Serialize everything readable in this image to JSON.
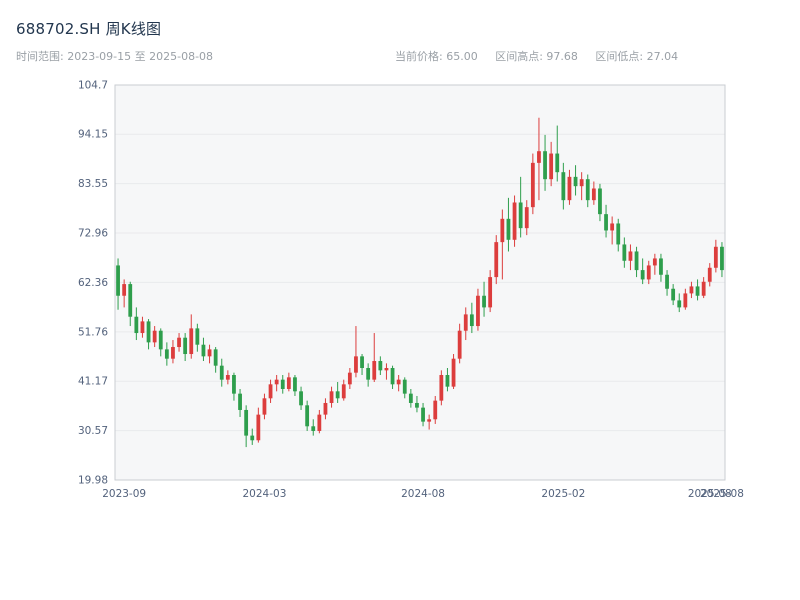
{
  "header": {
    "title": "688702.SH 周K线图",
    "time_range": "时间范围: 2023-09-15 至 2025-08-08",
    "stats": [
      "当前价格: 65.00",
      "区间高点: 97.68",
      "区间低点: 27.04"
    ]
  },
  "chart_data": {
    "type": "candlestick",
    "title": "688702.SH 周K线图",
    "xlabel": "",
    "ylabel": "",
    "ylim": [
      19.98,
      104.7
    ],
    "y_ticks": [
      "19.98",
      "30.57",
      "41.17",
      "51.76",
      "62.36",
      "72.96",
      "83.55",
      "94.15",
      "104.7"
    ],
    "x_ticks": [
      {
        "label": "2023-09",
        "pos": 1
      },
      {
        "label": "2024-03",
        "pos": 24
      },
      {
        "label": "2024-08",
        "pos": 50
      },
      {
        "label": "2025-02",
        "pos": 73
      },
      {
        "label": "2025-08",
        "pos": 97
      },
      {
        "label": "2025-08",
        "pos": 99
      }
    ],
    "legend": [],
    "grid": "horizontal",
    "colors": {
      "up": "#dc3d3d",
      "down": "#2e9e4c",
      "grid": "#e9eaec",
      "border": "#c9cdd2",
      "tick_text": "#53627c",
      "plot_bg": "#f6f7f8"
    },
    "candles": [
      [
        66.0,
        67.5,
        56.5,
        59.5
      ],
      [
        59.5,
        63.0,
        57.0,
        62.0
      ],
      [
        62.0,
        62.5,
        53.0,
        55.0
      ],
      [
        55.0,
        57.0,
        50.0,
        51.5
      ],
      [
        51.5,
        55.0,
        50.5,
        54.0
      ],
      [
        54.0,
        54.5,
        48.0,
        49.5
      ],
      [
        49.5,
        53.0,
        48.5,
        52.0
      ],
      [
        52.0,
        52.5,
        46.5,
        48.0
      ],
      [
        48.0,
        49.5,
        44.5,
        46.0
      ],
      [
        46.0,
        50.0,
        45.0,
        48.5
      ],
      [
        48.5,
        51.5,
        47.5,
        50.5
      ],
      [
        50.5,
        51.5,
        45.5,
        47.0
      ],
      [
        47.0,
        55.5,
        46.0,
        52.5
      ],
      [
        52.5,
        53.5,
        47.5,
        49.0
      ],
      [
        49.0,
        50.5,
        45.5,
        46.5
      ],
      [
        46.5,
        49.0,
        45.0,
        48.0
      ],
      [
        48.0,
        48.5,
        43.0,
        44.5
      ],
      [
        44.5,
        46.0,
        40.0,
        41.5
      ],
      [
        41.5,
        43.5,
        40.5,
        42.5
      ],
      [
        42.5,
        43.0,
        37.0,
        38.5
      ],
      [
        38.5,
        39.5,
        33.5,
        35.0
      ],
      [
        35.0,
        36.0,
        27.04,
        29.5
      ],
      [
        29.5,
        31.0,
        27.5,
        28.5
      ],
      [
        28.5,
        35.5,
        28.0,
        34.0
      ],
      [
        34.0,
        38.5,
        33.0,
        37.5
      ],
      [
        37.5,
        41.5,
        36.5,
        40.5
      ],
      [
        40.5,
        42.5,
        39.0,
        41.5
      ],
      [
        41.5,
        42.5,
        38.5,
        39.5
      ],
      [
        39.5,
        43.0,
        39.0,
        42.0
      ],
      [
        42.0,
        42.5,
        38.0,
        39.0
      ],
      [
        39.0,
        40.0,
        35.0,
        36.0
      ],
      [
        36.0,
        37.0,
        30.5,
        31.5
      ],
      [
        31.5,
        33.0,
        29.5,
        30.5
      ],
      [
        30.5,
        35.0,
        30.0,
        34.0
      ],
      [
        34.0,
        37.5,
        33.0,
        36.5
      ],
      [
        36.5,
        40.0,
        35.5,
        39.0
      ],
      [
        39.0,
        41.0,
        36.5,
        37.5
      ],
      [
        37.5,
        41.5,
        37.0,
        40.5
      ],
      [
        40.5,
        44.0,
        39.5,
        43.0
      ],
      [
        43.0,
        53.0,
        42.0,
        46.5
      ],
      [
        46.5,
        47.0,
        42.5,
        44.0
      ],
      [
        44.0,
        45.0,
        40.0,
        41.5
      ],
      [
        41.5,
        51.5,
        41.0,
        45.5
      ],
      [
        45.5,
        46.5,
        42.5,
        43.5
      ],
      [
        43.5,
        45.0,
        41.5,
        44.0
      ],
      [
        44.0,
        44.5,
        39.5,
        40.5
      ],
      [
        40.5,
        42.5,
        39.0,
        41.5
      ],
      [
        41.5,
        42.0,
        37.5,
        38.5
      ],
      [
        38.5,
        39.5,
        35.5,
        36.5
      ],
      [
        36.5,
        38.0,
        34.5,
        35.5
      ],
      [
        35.5,
        36.5,
        31.5,
        32.5
      ],
      [
        32.5,
        34.0,
        30.8,
        33.0
      ],
      [
        33.0,
        38.0,
        32.0,
        37.0
      ],
      [
        37.0,
        43.5,
        36.0,
        42.5
      ],
      [
        42.5,
        44.0,
        39.0,
        40.0
      ],
      [
        40.0,
        47.0,
        39.5,
        46.0
      ],
      [
        46.0,
        53.5,
        45.0,
        52.0
      ],
      [
        52.0,
        57.0,
        50.0,
        55.5
      ],
      [
        55.5,
        58.0,
        51.5,
        53.0
      ],
      [
        53.0,
        61.0,
        52.0,
        59.5
      ],
      [
        59.5,
        62.5,
        55.0,
        57.0
      ],
      [
        57.0,
        65.0,
        56.0,
        63.5
      ],
      [
        63.5,
        72.5,
        62.0,
        71.0
      ],
      [
        71.0,
        78.0,
        63.0,
        76.0
      ],
      [
        76.0,
        80.5,
        69.0,
        71.5
      ],
      [
        71.5,
        81.0,
        70.0,
        79.5
      ],
      [
        79.5,
        85.0,
        72.0,
        74.0
      ],
      [
        74.0,
        80.0,
        72.5,
        78.5
      ],
      [
        78.5,
        90.0,
        77.0,
        88.0
      ],
      [
        88.0,
        97.68,
        80.0,
        90.5
      ],
      [
        90.5,
        94.0,
        82.0,
        84.5
      ],
      [
        84.5,
        92.5,
        83.0,
        90.0
      ],
      [
        90.0,
        96.0,
        84.0,
        86.0
      ],
      [
        86.0,
        88.0,
        78.0,
        80.0
      ],
      [
        80.0,
        86.5,
        79.0,
        85.0
      ],
      [
        85.0,
        87.5,
        81.0,
        83.0
      ],
      [
        83.0,
        86.0,
        80.0,
        84.5
      ],
      [
        84.5,
        85.5,
        78.5,
        80.0
      ],
      [
        80.0,
        84.0,
        79.0,
        82.5
      ],
      [
        82.5,
        83.5,
        75.5,
        77.0
      ],
      [
        77.0,
        79.0,
        72.0,
        73.5
      ],
      [
        73.5,
        76.5,
        70.5,
        75.0
      ],
      [
        75.0,
        76.0,
        69.0,
        70.5
      ],
      [
        70.5,
        72.0,
        65.5,
        67.0
      ],
      [
        67.0,
        70.5,
        65.0,
        69.0
      ],
      [
        69.0,
        70.0,
        63.5,
        65.0
      ],
      [
        65.0,
        67.5,
        62.0,
        63.0
      ],
      [
        63.0,
        67.0,
        62.0,
        66.0
      ],
      [
        66.0,
        68.5,
        64.0,
        67.5
      ],
      [
        67.5,
        68.5,
        62.5,
        64.0
      ],
      [
        64.0,
        65.0,
        59.5,
        61.0
      ],
      [
        61.0,
        62.0,
        57.5,
        58.5
      ],
      [
        58.5,
        60.0,
        56.0,
        57.0
      ],
      [
        57.0,
        61.0,
        56.5,
        60.0
      ],
      [
        60.0,
        62.5,
        59.0,
        61.5
      ],
      [
        61.5,
        63.0,
        58.5,
        59.5
      ],
      [
        59.5,
        63.5,
        59.0,
        62.5
      ],
      [
        62.5,
        66.5,
        61.5,
        65.5
      ],
      [
        65.5,
        71.5,
        64.5,
        70.0
      ],
      [
        70.0,
        71.0,
        63.5,
        65.0
      ]
    ]
  }
}
